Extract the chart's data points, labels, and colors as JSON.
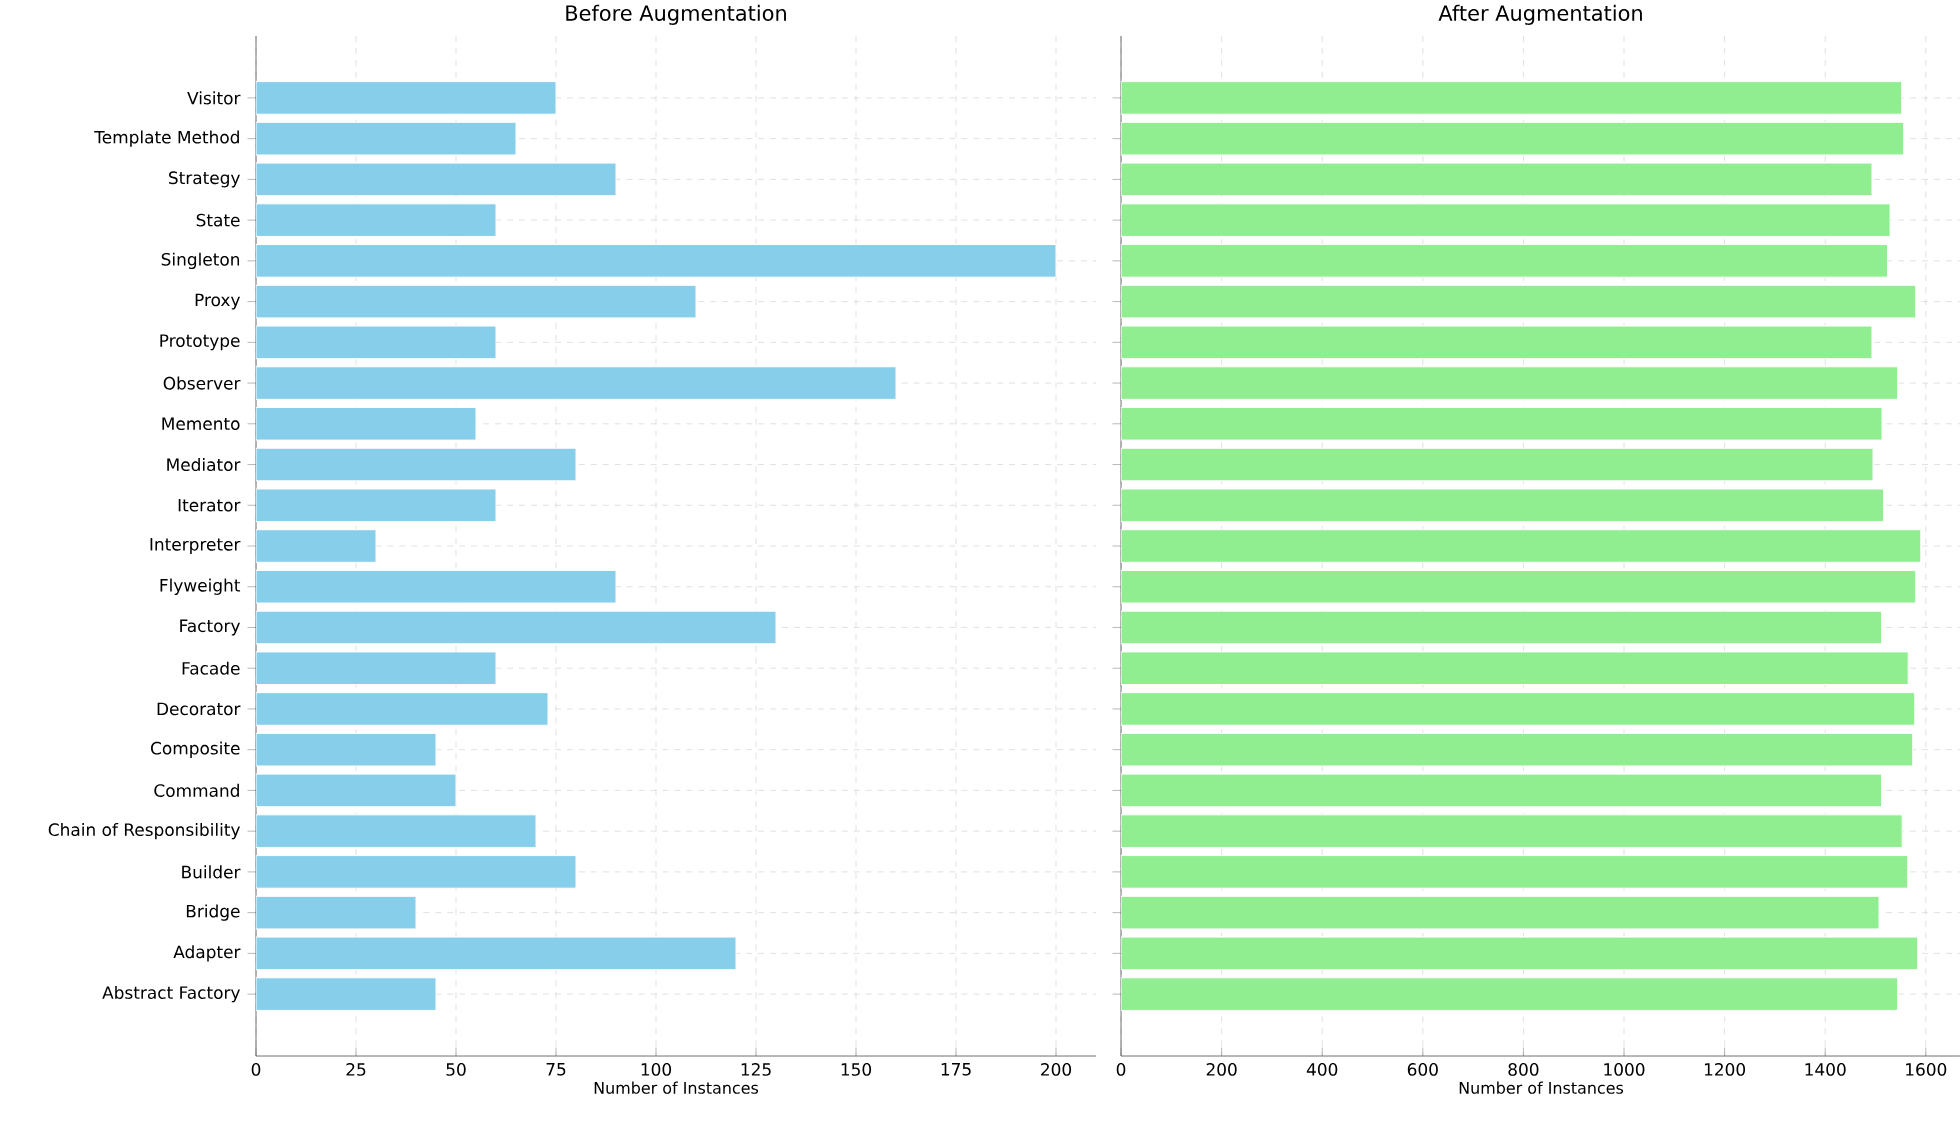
{
  "chart_data": [
    {
      "type": "bar",
      "orientation": "horizontal",
      "title": "Before Augmentation",
      "xlabel": "Number of Instances",
      "color": "#87ceeb",
      "grid": true,
      "categories": [
        "Visitor",
        "Template Method",
        "Strategy",
        "State",
        "Singleton",
        "Proxy",
        "Prototype",
        "Observer",
        "Memento",
        "Mediator",
        "Iterator",
        "Interpreter",
        "Flyweight",
        "Factory",
        "Facade",
        "Decorator",
        "Composite",
        "Command",
        "Chain of Responsibility",
        "Builder",
        "Bridge",
        "Adapter",
        "Abstract Factory"
      ],
      "values": [
        75,
        65,
        90,
        60,
        200,
        110,
        60,
        160,
        55,
        80,
        60,
        30,
        90,
        130,
        60,
        73,
        45,
        50,
        70,
        80,
        40,
        120,
        45
      ],
      "xlim": [
        0,
        210
      ],
      "xticks": [
        0,
        25,
        50,
        75,
        100,
        125,
        150,
        175,
        200
      ]
    },
    {
      "type": "bar",
      "orientation": "horizontal",
      "title": "After Augmentation",
      "xlabel": "Number of Instances",
      "color": "#90ee90",
      "grid": true,
      "tick_labels": "x",
      "categories": [
        null,
        null,
        null,
        null,
        null,
        null,
        null,
        null,
        null,
        null,
        null,
        null,
        null,
        null,
        null,
        null,
        null,
        null,
        null,
        null,
        null,
        null,
        null
      ],
      "values": [
        1552,
        1556,
        1493,
        1529,
        1524,
        1580,
        1493,
        1544,
        1513,
        1495,
        1516,
        1590,
        1580,
        1512,
        1565,
        1578,
        1574,
        1512,
        1553,
        1564,
        1507,
        1584,
        1544
      ],
      "xlim": [
        0,
        1670
      ],
      "xticks": [
        0,
        200,
        400,
        600,
        800,
        1000,
        1200,
        1400,
        1600
      ]
    }
  ]
}
